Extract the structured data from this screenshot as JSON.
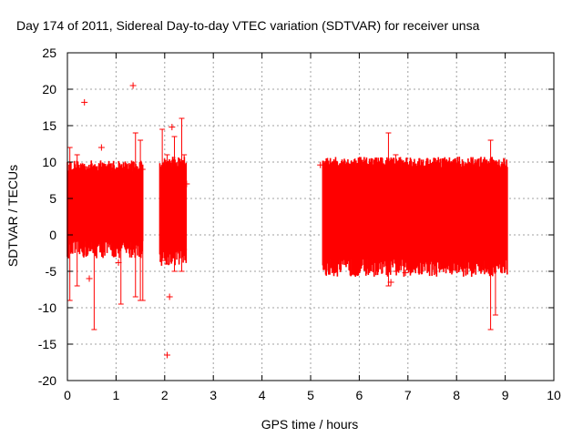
{
  "chart_data": {
    "type": "scatter",
    "title": "Day 174 of 2011, Sidereal Day-to-day VTEC variation (SDTVAR) for receiver unsa",
    "xlabel": "GPS time / hours",
    "ylabel": "SDTVAR / TECUs",
    "xlim": [
      0,
      10
    ],
    "ylim": [
      -20,
      25
    ],
    "x_ticks": [
      "0",
      "1",
      "2",
      "3",
      "4",
      "5",
      "6",
      "7",
      "8",
      "9",
      "10"
    ],
    "y_ticks": [
      "-20",
      "-15",
      "-10",
      "-5",
      "0",
      "5",
      "10",
      "15",
      "20",
      "25"
    ],
    "grid": true,
    "marker": "+",
    "color": "#ff0000",
    "series": [
      {
        "name": "SDTVAR",
        "bands": [
          {
            "x_start": 0.0,
            "x_end": 1.55,
            "lower": -2.0,
            "upper": 9.5
          },
          {
            "x_start": 1.9,
            "x_end": 2.45,
            "lower": -3.0,
            "upper": 10.0
          },
          {
            "x_start": 5.25,
            "x_end": 9.05,
            "lower": -4.5,
            "upper": 10.0
          }
        ],
        "spikes": [
          {
            "x": 0.05,
            "low": -9.0,
            "high": 12.0
          },
          {
            "x": 0.2,
            "low": -7.0,
            "high": 11.0
          },
          {
            "x": 0.55,
            "low": -13.0,
            "high": 2.0
          },
          {
            "x": 1.1,
            "low": -9.5,
            "high": 0.0
          },
          {
            "x": 1.4,
            "low": -8.5,
            "high": 14.0
          },
          {
            "x": 1.5,
            "low": -9.0,
            "high": 13.0
          },
          {
            "x": 1.55,
            "low": -9.0,
            "high": 9.0
          },
          {
            "x": 1.95,
            "low": -3.5,
            "high": 14.5
          },
          {
            "x": 2.05,
            "low": -4.0,
            "high": 11.0
          },
          {
            "x": 2.2,
            "low": -5.0,
            "high": 13.5
          },
          {
            "x": 2.35,
            "low": -5.0,
            "high": 16.0
          },
          {
            "x": 2.4,
            "low": -2.0,
            "high": 11.0
          },
          {
            "x": 5.3,
            "low": -1.0,
            "high": 8.0
          },
          {
            "x": 6.6,
            "low": -7.0,
            "high": 14.0
          },
          {
            "x": 6.75,
            "low": -5.0,
            "high": 11.0
          },
          {
            "x": 8.7,
            "low": -13.0,
            "high": 13.0
          },
          {
            "x": 8.8,
            "low": -11.0,
            "high": 10.0
          }
        ],
        "outliers": [
          {
            "x": 0.35,
            "y": 18.2
          },
          {
            "x": 1.35,
            "y": 20.5
          },
          {
            "x": 2.05,
            "y": -16.5
          },
          {
            "x": 2.15,
            "y": 14.8
          },
          {
            "x": 2.1,
            "y": -8.5
          },
          {
            "x": 0.7,
            "y": 12.0
          },
          {
            "x": 0.45,
            "y": -6.0
          },
          {
            "x": 5.2,
            "y": 9.6
          },
          {
            "x": 6.65,
            "y": -6.5
          },
          {
            "x": 6.95,
            "y": -5.2
          },
          {
            "x": 1.05,
            "y": -3.8
          },
          {
            "x": 2.45,
            "y": 7.0
          }
        ]
      }
    ]
  }
}
